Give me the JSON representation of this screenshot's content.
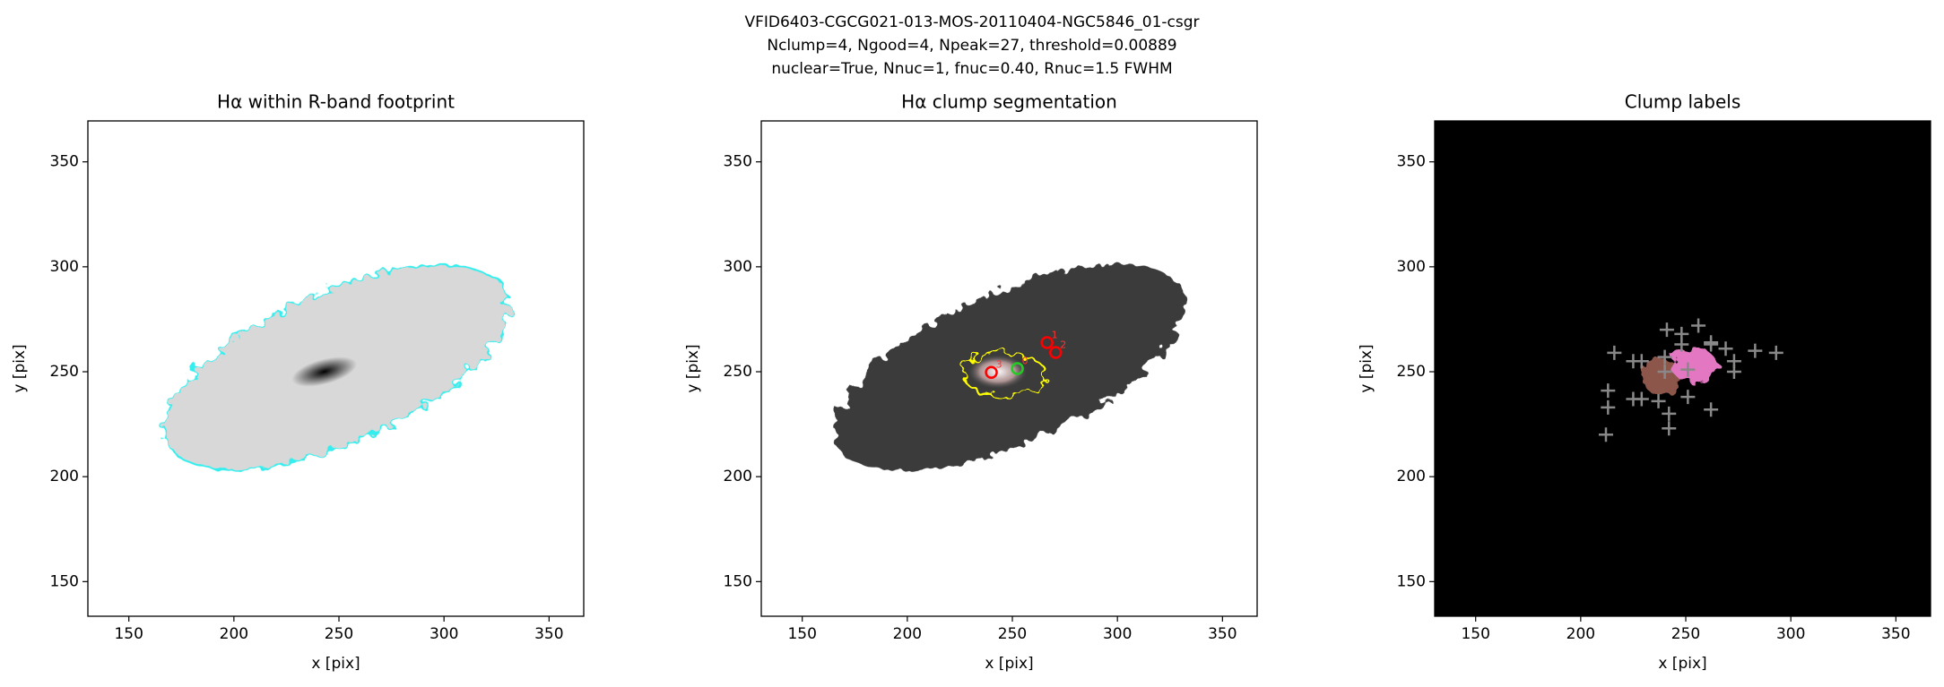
{
  "suptitle": [
    "VFID6403-CGCG021-013-MOS-20110404-NGC5846_01-csgr",
    "Nclump=4, Ngood=4, Npeak=27, threshold=0.00889",
    "nuclear=True, Nnuc=1, fnuc=0.40, Rnuc=1.5 FWHM"
  ],
  "chart_data": [
    {
      "type": "image",
      "title": "Hα within R-band footprint",
      "xlabel": "x [pix]",
      "ylabel": "y [pix]",
      "xlim": [
        130.5,
        366.5
      ],
      "ylim": [
        133.5,
        369.5
      ],
      "xticks": [
        150,
        200,
        250,
        300,
        350
      ],
      "yticks": [
        150,
        200,
        250,
        300,
        350
      ]
    },
    {
      "type": "segmentation",
      "title": "Hα clump segmentation",
      "xlabel": "x [pix]",
      "ylabel": "y [pix]",
      "xlim": [
        130.5,
        366.5
      ],
      "ylim": [
        133.5,
        369.5
      ],
      "xticks": [
        150,
        200,
        250,
        300,
        350
      ],
      "yticks": [
        150,
        200,
        250,
        300,
        350
      ],
      "clumps": {
        "labels": [
          "3",
          "0",
          "1",
          "2"
        ],
        "x": [
          240,
          252.4,
          266.5,
          270.6
        ],
        "y": [
          249.7,
          251.5,
          263.9,
          259.2
        ],
        "colors": [
          "#ff0000",
          "#22cc22",
          "#ff0000",
          "#ff0000"
        ]
      }
    },
    {
      "type": "labels",
      "title": "Clump labels",
      "xlabel": "x [pix]",
      "ylabel": "y [pix]",
      "xlim": [
        130.5,
        366.5
      ],
      "ylim": [
        133.5,
        369.5
      ],
      "xticks": [
        150,
        200,
        250,
        300,
        350
      ],
      "yticks": [
        150,
        200,
        250,
        300,
        350
      ],
      "peaks": {
        "color": "#888888",
        "x": [
          216,
          225,
          229,
          241,
          248,
          256,
          262,
          240,
          248,
          262,
          283,
          293,
          273,
          273,
          213,
          213,
          212,
          225,
          229,
          237,
          242,
          242,
          251,
          262,
          240,
          269,
          251
        ],
        "y": [
          259,
          255,
          255,
          270,
          268,
          272,
          264,
          257,
          263,
          263,
          260,
          259,
          255,
          250,
          241,
          233,
          220,
          237,
          237,
          236,
          230,
          223,
          238,
          232,
          250,
          261,
          251
        ]
      }
    }
  ]
}
